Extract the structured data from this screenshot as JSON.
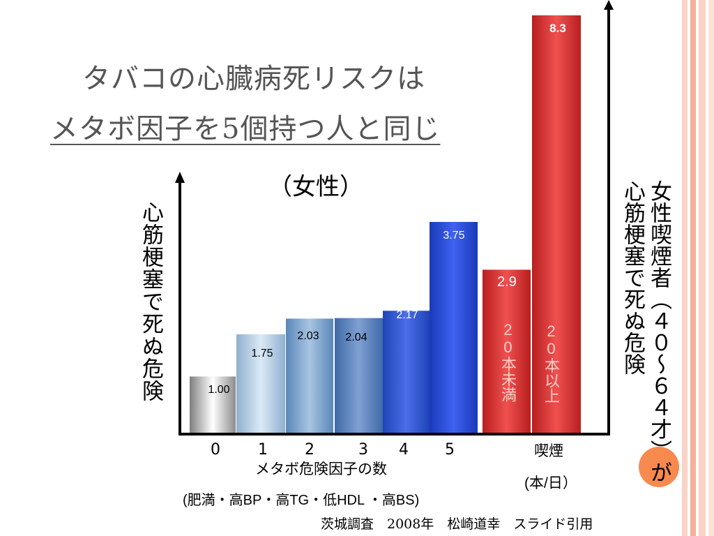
{
  "title": {
    "line1": "タバコの心臓病死リスクは",
    "line2": "メタボ因子を5個持つ人と同じ"
  },
  "subtitle": "（女性）",
  "y_label_left": "心筋梗塞で死ぬ危険",
  "y_label_right": {
    "line1": "女性喫煙者（４０～６４才）が",
    "line2": "心筋梗塞で死ぬ危険"
  },
  "x_label": "メタボ危険因子の数",
  "x_sub_label": "(肥満・高BP・高TG・低HDL ・高BS)",
  "smoking_label": "喫煙",
  "smoking_unit": "(本/日）",
  "source": "茨城調査　2008年　松崎道幸　スライド引用",
  "colors": {
    "accent": "#f8894f",
    "red": "#d42a2a",
    "blue": "#2a4fd0"
  },
  "chart_data": {
    "type": "bar",
    "categories": [
      "0",
      "1",
      "2",
      "3",
      "4",
      "5",
      "20本未満",
      "20本以上"
    ],
    "values": [
      1.0,
      1.75,
      2.03,
      2.04,
      2.17,
      3.75,
      2.9,
      8.3
    ],
    "data_labels": [
      "1.00",
      "1.75",
      "2.03",
      "2.04",
      "2.17",
      "3.75",
      "2.9",
      "8.3"
    ],
    "tick_labels": [
      "0",
      "1",
      "2",
      "3",
      "4",
      "5"
    ],
    "inner_labels": [
      "20本未満",
      "20本以上"
    ]
  }
}
